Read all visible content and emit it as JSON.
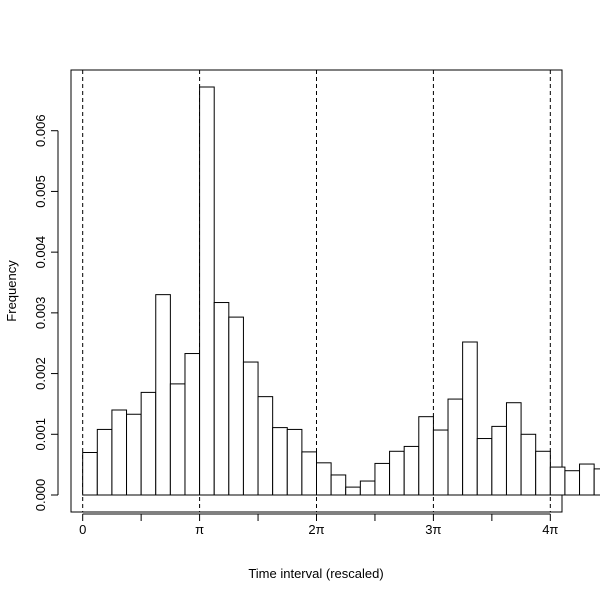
{
  "chart_data": {
    "type": "bar",
    "title": "",
    "xlabel": "Time interval (rescaled)",
    "ylabel": "Frequency",
    "bin_width_in_pi": 0.125,
    "x_start_in_pi": 0,
    "values": [
      0.0007,
      0.00108,
      0.0014,
      0.00133,
      0.00169,
      0.0033,
      0.00183,
      0.00233,
      0.00672,
      0.00317,
      0.00293,
      0.00219,
      0.00162,
      0.00111,
      0.00108,
      0.00071,
      0.00053,
      0.00033,
      0.00013,
      0.00023,
      0.00052,
      0.00072,
      0.0008,
      0.00129,
      0.00107,
      0.00158,
      0.00252,
      0.00093,
      0.00113,
      0.00152,
      0.001,
      0.00072,
      0.00046,
      0.0004,
      0.00051,
      0.00043
    ],
    "xlim_in_pi": [
      -0.1,
      4.1
    ],
    "ylim": [
      -0.00028,
      0.007
    ],
    "y_ticks": [
      {
        "value": 0.0,
        "label": "0.000"
      },
      {
        "value": 0.001,
        "label": "0.001"
      },
      {
        "value": 0.002,
        "label": "0.002"
      },
      {
        "value": 0.003,
        "label": "0.003"
      },
      {
        "value": 0.004,
        "label": "0.004"
      },
      {
        "value": 0.005,
        "label": "0.005"
      },
      {
        "value": 0.006,
        "label": "0.006"
      }
    ],
    "x_ticks": [
      {
        "value": 0,
        "label": "0"
      },
      {
        "value": 0.5,
        "label": ""
      },
      {
        "value": 1,
        "label": "π"
      },
      {
        "value": 1.5,
        "label": ""
      },
      {
        "value": 2,
        "label": "2π"
      },
      {
        "value": 2.5,
        "label": ""
      },
      {
        "value": 3,
        "label": "3π"
      },
      {
        "value": 3.5,
        "label": ""
      },
      {
        "value": 4,
        "label": "4π"
      }
    ],
    "vlines_in_pi": [
      0,
      1,
      2,
      3,
      4
    ],
    "grid": false,
    "legend": "none",
    "colors": {
      "bar_fill": "#ffffff",
      "bar_stroke": "#000000",
      "line": "#000000"
    }
  }
}
